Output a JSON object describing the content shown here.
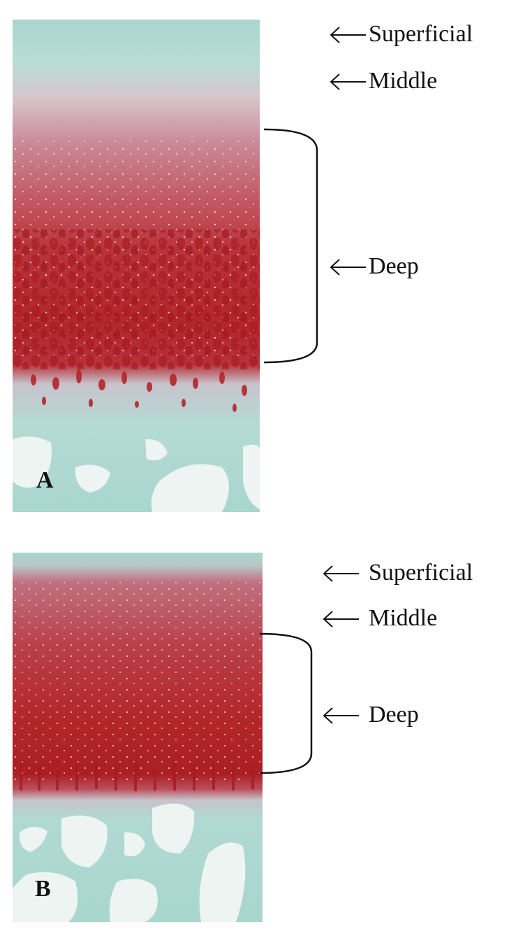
{
  "panels": [
    {
      "letter": "A",
      "zones": {
        "superficial": "Superficial",
        "middle": "Middle",
        "deep": "Deep"
      }
    },
    {
      "letter": "B",
      "zones": {
        "superficial": "Superficial",
        "middle": "Middle",
        "deep": "Deep"
      }
    }
  ],
  "colors": {
    "cartilage_stain": "#b3262a",
    "matrix_teal": "#a9d6d0",
    "bone_pale": "#eef4f2",
    "annotation_ink": "#111111"
  }
}
